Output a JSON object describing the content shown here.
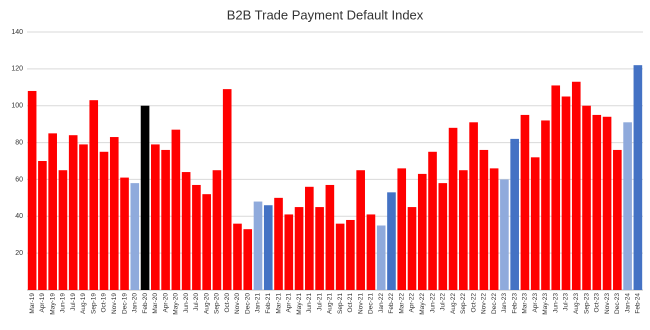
{
  "chart_data": {
    "type": "bar",
    "title": "B2B Trade Payment Default Index",
    "categories": [
      "Mar-19",
      "Apr-19",
      "May-19",
      "Jun-19",
      "Jul-19",
      "Aug-19",
      "Sep-19",
      "Oct-19",
      "Nov-19",
      "Dec-19",
      "Jan-20",
      "Feb-20",
      "Mar-20",
      "Apr-20",
      "May-20",
      "Jun-20",
      "Jul-20",
      "Aug-20",
      "Sep-20",
      "Oct-20",
      "Nov-20",
      "Dec-20",
      "Jan-21",
      "Feb-21",
      "Mar-21",
      "Apr-21",
      "May-21",
      "Jun-21",
      "Jul-21",
      "Aug-21",
      "Sep-21",
      "Oct-21",
      "Nov-21",
      "Dec-21",
      "Jan-22",
      "Feb-22",
      "Mar-22",
      "Apr-22",
      "May-22",
      "Jun-22",
      "Jul-22",
      "Aug-22",
      "Sep-22",
      "Oct-22",
      "Nov-22",
      "Dec-22",
      "Jan-23",
      "Feb-23",
      "Mar-23",
      "Apr-23",
      "May-23",
      "Jun-23",
      "Jul-23",
      "Aug-23",
      "Sep-23",
      "Oct-23",
      "Nov-23",
      "Dec-23",
      "Jan-24",
      "Feb-24"
    ],
    "values": [
      108,
      70,
      85,
      65,
      84,
      79,
      103,
      75,
      83,
      61,
      58,
      100,
      79,
      76,
      87,
      64,
      57,
      52,
      65,
      109,
      36,
      33,
      48,
      46,
      50,
      41,
      45,
      56,
      45,
      57,
      36,
      38,
      65,
      41,
      35,
      53,
      66,
      45,
      63,
      75,
      58,
      88,
      65,
      91,
      76,
      66,
      60,
      82,
      95,
      72,
      92,
      111,
      105,
      113,
      100,
      95,
      94,
      76,
      91,
      122
    ],
    "colors": [
      "#ff0000",
      "#ff0000",
      "#ff0000",
      "#ff0000",
      "#ff0000",
      "#ff0000",
      "#ff0000",
      "#ff0000",
      "#ff0000",
      "#ff0000",
      "#8faadc",
      "#000000",
      "#ff0000",
      "#ff0000",
      "#ff0000",
      "#ff0000",
      "#ff0000",
      "#ff0000",
      "#ff0000",
      "#ff0000",
      "#ff0000",
      "#ff0000",
      "#8faadc",
      "#4472c4",
      "#ff0000",
      "#ff0000",
      "#ff0000",
      "#ff0000",
      "#ff0000",
      "#ff0000",
      "#ff0000",
      "#ff0000",
      "#ff0000",
      "#ff0000",
      "#8faadc",
      "#4472c4",
      "#ff0000",
      "#ff0000",
      "#ff0000",
      "#ff0000",
      "#ff0000",
      "#ff0000",
      "#ff0000",
      "#ff0000",
      "#ff0000",
      "#ff0000",
      "#8faadc",
      "#4472c4",
      "#ff0000",
      "#ff0000",
      "#ff0000",
      "#ff0000",
      "#ff0000",
      "#ff0000",
      "#ff0000",
      "#ff0000",
      "#ff0000",
      "#ff0000",
      "#8faadc",
      "#4472c4"
    ],
    "ylim": [
      0,
      140
    ],
    "yticks": [
      20,
      40,
      60,
      80,
      100,
      120,
      140
    ],
    "grid": true
  }
}
